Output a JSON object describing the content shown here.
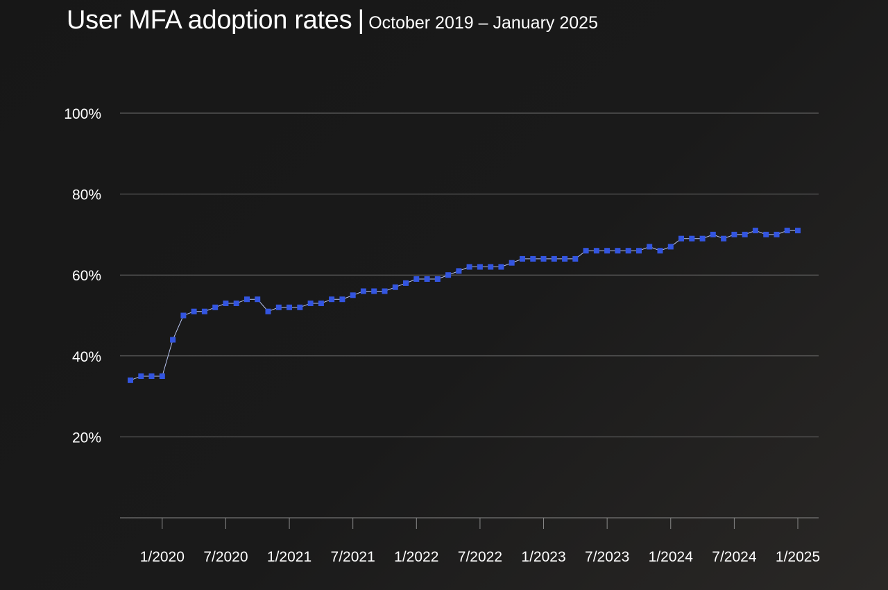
{
  "chart_data": {
    "type": "line",
    "title": "User MFA adoption rates",
    "separator": "|",
    "subtitle": "October 2019 – January 2025",
    "xlabel": "",
    "ylabel": "",
    "ylim": [
      0,
      100
    ],
    "grid": true,
    "y_ticks": [
      {
        "value": 20,
        "label": "20%"
      },
      {
        "value": 40,
        "label": "40%"
      },
      {
        "value": 60,
        "label": "60%"
      },
      {
        "value": 80,
        "label": "80%"
      },
      {
        "value": 100,
        "label": "100%"
      }
    ],
    "x_ticks": [
      {
        "index": 3,
        "label": "1/2020"
      },
      {
        "index": 9,
        "label": "7/2020"
      },
      {
        "index": 15,
        "label": "1/2021"
      },
      {
        "index": 21,
        "label": "7/2021"
      },
      {
        "index": 27,
        "label": "1/2022"
      },
      {
        "index": 33,
        "label": "7/2022"
      },
      {
        "index": 39,
        "label": "1/2023"
      },
      {
        "index": 45,
        "label": "7/2023"
      },
      {
        "index": 51,
        "label": "1/2024"
      },
      {
        "index": 57,
        "label": "7/2024"
      },
      {
        "index": 63,
        "label": "1/2025"
      }
    ],
    "series": [
      {
        "name": "MFA adoption rate",
        "color": "#3355e0",
        "line_color": "#b8c4f0",
        "start": "10/2019",
        "values": [
          34,
          35,
          35,
          35,
          44,
          50,
          51,
          51,
          52,
          53,
          53,
          54,
          54,
          51,
          52,
          52,
          52,
          53,
          53,
          54,
          54,
          55,
          56,
          56,
          56,
          57,
          58,
          59,
          59,
          59,
          60,
          61,
          62,
          62,
          62,
          62,
          63,
          64,
          64,
          64,
          64,
          64,
          64,
          66,
          66,
          66,
          66,
          66,
          66,
          67,
          66,
          67,
          69,
          69,
          69,
          70,
          69,
          70,
          70,
          71,
          70,
          70,
          71,
          71
        ]
      }
    ]
  }
}
